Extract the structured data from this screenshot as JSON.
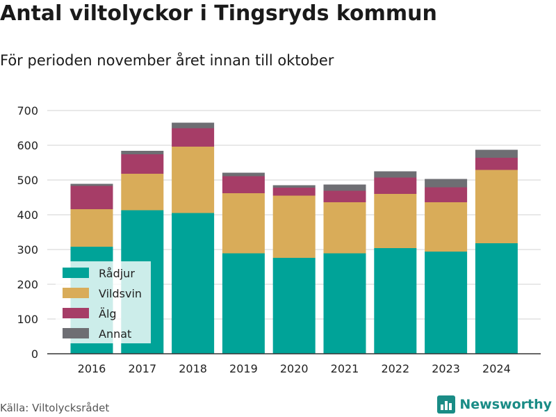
{
  "title": "Antal viltolyckor i Tingsryds kommun",
  "subtitle": "För perioden november året innan till oktober",
  "source": "Källa: Viltolycksrådet",
  "brand": {
    "name": "Newsworthy",
    "icon": "bar-chart-logo-icon",
    "color": "#1a8c86"
  },
  "chart_data": {
    "type": "bar",
    "stacked": true,
    "categories": [
      "2016",
      "2017",
      "2018",
      "2019",
      "2020",
      "2021",
      "2022",
      "2023",
      "2024"
    ],
    "series": [
      {
        "name": "Rådjur",
        "color": "#00a398",
        "values": [
          308,
          413,
          405,
          289,
          276,
          289,
          304,
          294,
          318
        ]
      },
      {
        "name": "Vildsvin",
        "color": "#d9ac59",
        "values": [
          108,
          105,
          191,
          173,
          179,
          147,
          156,
          142,
          211
        ]
      },
      {
        "name": "Älg",
        "color": "#a63d67",
        "values": [
          67,
          56,
          53,
          49,
          23,
          33,
          47,
          43,
          35
        ]
      },
      {
        "name": "Annat",
        "color": "#6e6e73",
        "values": [
          6,
          10,
          16,
          10,
          7,
          18,
          18,
          24,
          23
        ]
      }
    ],
    "yticks": [
      0,
      100,
      200,
      300,
      400,
      500,
      600,
      700
    ],
    "ylim": [
      0,
      700
    ],
    "grid": true,
    "legend": "bottom-left inside plot"
  }
}
